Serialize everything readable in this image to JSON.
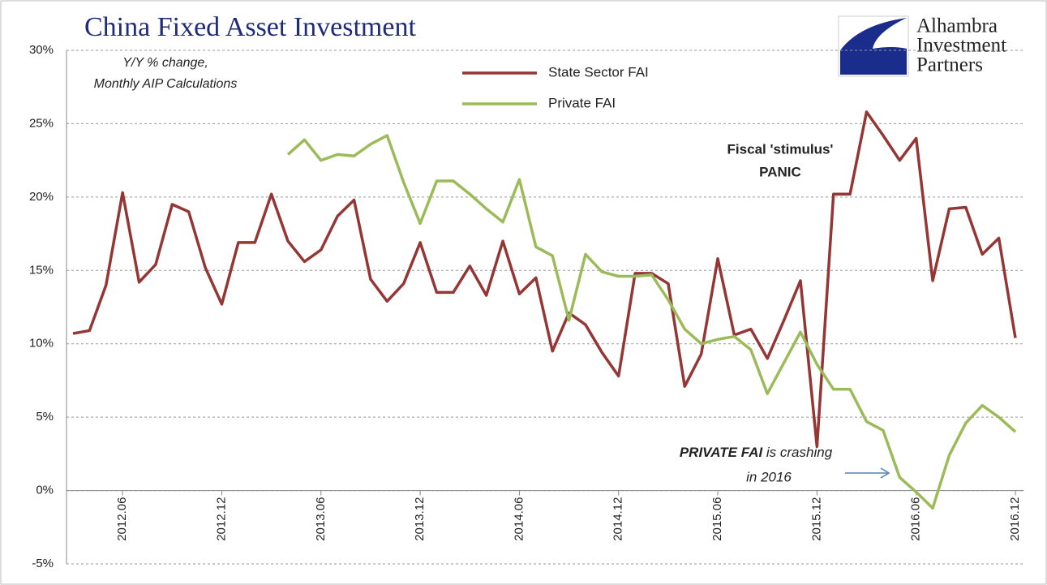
{
  "chart_data": {
    "type": "line",
    "title": "China Fixed Asset Investment",
    "logo": [
      "Alhambra",
      "Investment",
      "Partners"
    ],
    "annotations": {
      "subtitle": [
        "Y/Y % change,",
        "Monthly AIP Calculations"
      ],
      "stimulus": [
        "Fiscal 'stimulus'",
        "PANIC"
      ],
      "private": [
        "PRIVATE FAI",
        " is crashing",
        "in 2016"
      ]
    },
    "categories": [
      null,
      null,
      null,
      "2012.06",
      null,
      null,
      null,
      null,
      null,
      "2012.12",
      null,
      null,
      null,
      null,
      null,
      "2013.06",
      null,
      null,
      null,
      null,
      null,
      "2013.12",
      null,
      null,
      null,
      null,
      null,
      "2014.06",
      null,
      null,
      null,
      null,
      null,
      "2014.12",
      null,
      null,
      null,
      null,
      null,
      "2015.06",
      null,
      null,
      null,
      null,
      null,
      "2015.12",
      null,
      null,
      null,
      null,
      null,
      "2016.06",
      null,
      null,
      null,
      null,
      null,
      "2016.12"
    ],
    "series": [
      {
        "name": "State Sector FAI",
        "color": "#943634",
        "values": [
          10.7,
          10.9,
          14.0,
          20.3,
          14.2,
          15.4,
          19.5,
          19.0,
          15.2,
          12.7,
          16.9,
          16.9,
          20.2,
          17.0,
          15.6,
          16.4,
          18.7,
          19.8,
          14.4,
          12.9,
          14.1,
          16.9,
          13.5,
          13.5,
          15.3,
          13.3,
          17.0,
          13.4,
          14.5,
          9.5,
          12.1,
          11.3,
          9.4,
          7.8,
          14.8,
          14.8,
          14.1,
          7.1,
          9.3,
          15.8,
          10.6,
          11.0,
          9.0,
          11.6,
          14.3,
          3.0,
          20.2,
          20.2,
          25.8,
          24.2,
          22.5,
          24.0,
          14.3,
          19.2,
          19.3,
          16.1,
          17.2,
          10.4
        ]
      },
      {
        "name": "Private FAI",
        "color": "#9bbb59",
        "values": [
          null,
          null,
          null,
          null,
          null,
          null,
          null,
          null,
          null,
          null,
          null,
          null,
          null,
          22.9,
          23.9,
          22.5,
          22.9,
          22.8,
          23.6,
          24.2,
          21.0,
          18.2,
          21.1,
          21.1,
          20.2,
          19.2,
          18.3,
          21.2,
          16.6,
          16.0,
          11.6,
          16.1,
          14.9,
          14.6,
          14.6,
          14.7,
          13.0,
          11.0,
          10.0,
          10.3,
          10.5,
          9.6,
          6.6,
          8.7,
          10.8,
          8.6,
          6.9,
          6.9,
          4.7,
          4.1,
          0.9,
          -0.1,
          -1.2,
          2.4,
          4.6,
          5.8,
          5.0,
          4.0
        ]
      }
    ],
    "ylim": [
      -5,
      30
    ],
    "yticks": [
      {
        "value": -5,
        "label": "-5%"
      },
      {
        "value": 0,
        "label": "0%"
      },
      {
        "value": 5,
        "label": "5%"
      },
      {
        "value": 10,
        "label": "10%"
      },
      {
        "value": 15,
        "label": "15%"
      },
      {
        "value": 20,
        "label": "20%"
      },
      {
        "value": 25,
        "label": "25%"
      },
      {
        "value": 30,
        "label": "30%"
      }
    ],
    "grid": true
  }
}
